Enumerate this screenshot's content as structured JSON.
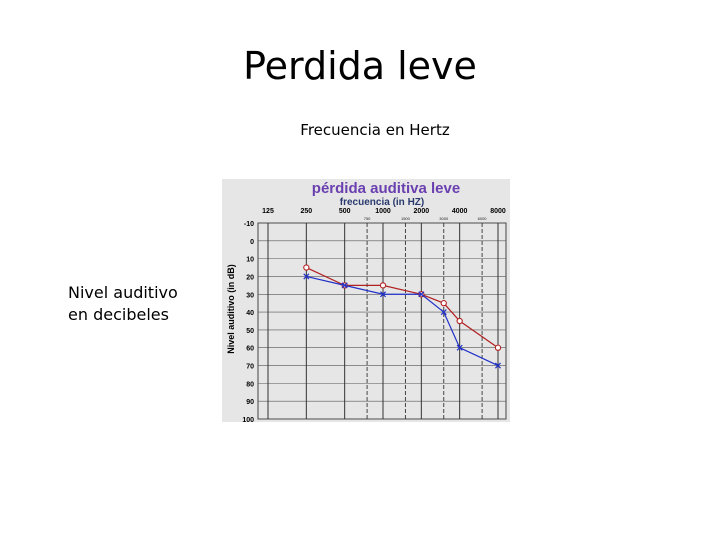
{
  "slide": {
    "title": "Perdida leve",
    "x_caption": "Frecuencia en Hertz",
    "y_caption": "Nivel auditivo en decibeles"
  },
  "colors": {
    "title_purple": "#6a3fb0",
    "frequency_label": "#2a3a6e",
    "series_red": "#b22020",
    "series_blue": "#2030c8",
    "background_grey": "#e6e6e6"
  },
  "chart_data": {
    "type": "line",
    "title": "pérdida auditiva leve",
    "subtitle": "frecuencia (in HZ)",
    "xlabel": "frecuencia (in HZ)",
    "ylabel": "Nivel auditivo (in dB)",
    "x_ticks": [
      "125",
      "250",
      "500",
      "1000",
      "2000",
      "4000",
      "8000"
    ],
    "x_minor_ticks": [
      "750",
      "1500",
      "3000",
      "6000"
    ],
    "y_ticks": [
      -10,
      0,
      10,
      20,
      30,
      40,
      50,
      60,
      70,
      80,
      90,
      100
    ],
    "ylim": [
      -10,
      100
    ],
    "y_inverted": true,
    "grid": true,
    "series": [
      {
        "marker": "circle",
        "color": "#b22020",
        "x": [
          250,
          500,
          1000,
          2000,
          3000,
          4000,
          8000
        ],
        "values": [
          15,
          25,
          25,
          30,
          35,
          45,
          60
        ]
      },
      {
        "marker": "cross",
        "color": "#2030c8",
        "x": [
          250,
          500,
          1000,
          2000,
          3000,
          4000,
          8000
        ],
        "values": [
          20,
          25,
          30,
          30,
          40,
          60,
          70
        ]
      }
    ]
  }
}
